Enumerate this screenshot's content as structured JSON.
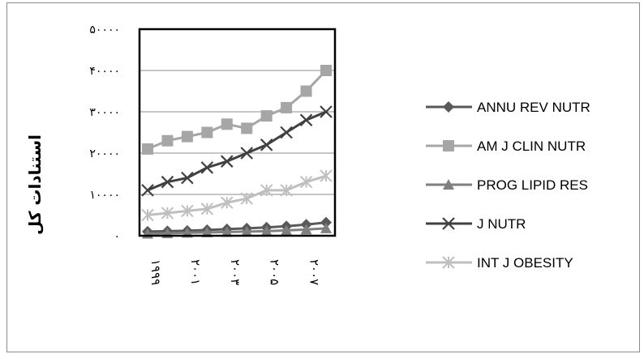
{
  "chart_data": {
    "type": "line",
    "title": "",
    "xlabel": "",
    "ylabel": "استنادات کل",
    "ylim": [
      0,
      50000
    ],
    "yticks": [
      0,
      10000,
      20000,
      30000,
      40000,
      50000
    ],
    "ytick_labels": [
      "۰",
      "۱۰۰۰۰",
      "۲۰۰۰۰",
      "۳۰۰۰۰",
      "۴۰۰۰۰",
      "۵۰۰۰۰"
    ],
    "x": [
      1999,
      2000,
      2001,
      2002,
      2003,
      2004,
      2005,
      2006,
      2007,
      2008
    ],
    "xtick_indices": [
      0,
      2,
      4,
      6,
      8
    ],
    "xtick_labels": [
      "۱۹۹۹",
      "۲۰۰۱",
      "۲۰۰۳",
      "۲۰۰۵",
      "۲۰۰۷"
    ],
    "grid": true,
    "legend_position": "right",
    "series": [
      {
        "name": "ANNU REV NUTR",
        "marker": "diamond",
        "color": "#595959",
        "values": [
          1000,
          1100,
          1200,
          1400,
          1600,
          1800,
          2000,
          2300,
          2700,
          3200
        ]
      },
      {
        "name": "AM J CLIN NUTR",
        "marker": "square",
        "color": "#a6a6a6",
        "values": [
          21000,
          23000,
          24000,
          25000,
          27000,
          26000,
          29000,
          31000,
          35000,
          40000
        ]
      },
      {
        "name": "PROG LIPID RES",
        "marker": "triangle",
        "color": "#7f7f7f",
        "values": [
          500,
          600,
          700,
          800,
          900,
          1000,
          1100,
          1300,
          1500,
          1800
        ]
      },
      {
        "name": "J NUTR",
        "marker": "x",
        "color": "#404040",
        "values": [
          11000,
          13000,
          14000,
          16500,
          18000,
          20000,
          22000,
          25000,
          28000,
          30000
        ]
      },
      {
        "name": "INT J OBESITY",
        "marker": "star",
        "color": "#bfbfbf",
        "values": [
          5000,
          5500,
          6000,
          6500,
          8000,
          9000,
          11000,
          11000,
          13000,
          14500
        ]
      }
    ]
  }
}
